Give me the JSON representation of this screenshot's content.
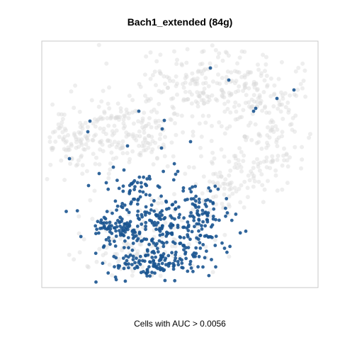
{
  "chart_data": {
    "type": "scatter",
    "title": "Bach1_extended (84g)",
    "xlabel": "Cells with AUC > 0.0056",
    "ylabel": "",
    "grid": false,
    "legend": "none",
    "colors": {
      "background_cells": "#d9d9d9",
      "highlighted_cells": "#1a5490",
      "frame": "#c8c8c8"
    },
    "series": [
      {
        "name": "",
        "role": "background_cells",
        "points": []
      },
      {
        "name": "",
        "role": "highlighted_cells",
        "points": []
      }
    ]
  }
}
